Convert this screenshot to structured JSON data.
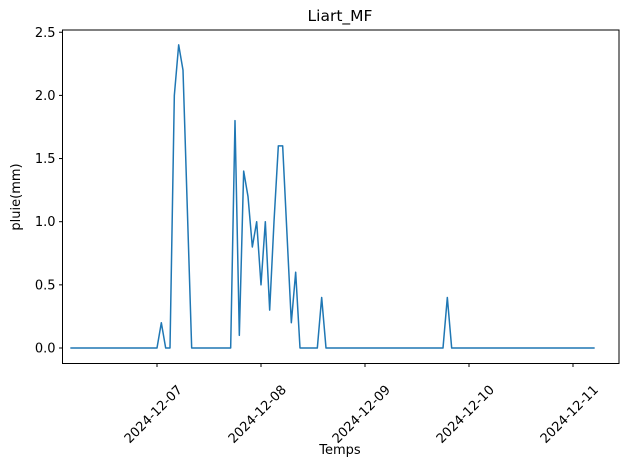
{
  "figure": {
    "title": "Liart_MF",
    "xlabel": "Temps",
    "ylabel": "pluie(mm)"
  },
  "chart_data": {
    "type": "line",
    "title": "Liart_MF",
    "xlabel": "Temps",
    "ylabel": "pluie(mm)",
    "line_color": "#1f77b4",
    "background_color": "#ffffff",
    "grid": false,
    "legend": "none",
    "ylim": [
      -0.13,
      2.52
    ],
    "yticks": {
      "values": [
        0,
        0.5,
        1.0,
        1.5,
        2.0,
        2.5
      ],
      "labels": [
        "0.0",
        "0.5",
        "1.0",
        "1.5",
        "2.0",
        "2.5"
      ]
    },
    "xticks": {
      "labels": [
        "2024-12-07",
        "2024-12-08",
        "2024-12-09",
        "2024-12-10",
        "2024-12-11"
      ],
      "rotation_deg": 45
    },
    "series": [
      {
        "name": "pluie",
        "start": "2024-12-06 04:00",
        "step_hours": 1,
        "values": [
          0,
          0,
          0,
          0,
          0,
          0,
          0,
          0,
          0,
          0,
          0,
          0,
          0,
          0,
          0,
          0,
          0,
          0,
          0,
          0,
          0,
          0.2,
          0,
          0,
          2.0,
          2.4,
          2.2,
          1.1,
          0,
          0,
          0,
          0,
          0,
          0,
          0,
          0,
          0,
          0,
          1.8,
          0.1,
          1.4,
          1.2,
          0.8,
          1.0,
          0.5,
          1.0,
          0.3,
          1.0,
          1.6,
          1.6,
          0.9,
          0.2,
          0.6,
          0,
          0,
          0,
          0,
          0,
          0.4,
          0,
          0,
          0,
          0,
          0,
          0,
          0,
          0,
          0,
          0,
          0,
          0,
          0,
          0,
          0,
          0,
          0,
          0,
          0,
          0,
          0,
          0,
          0,
          0,
          0,
          0,
          0,
          0,
          0.4,
          0,
          0,
          0,
          0,
          0,
          0,
          0,
          0,
          0,
          0,
          0,
          0,
          0,
          0,
          0,
          0,
          0,
          0,
          0,
          0,
          0,
          0,
          0,
          0,
          0,
          0,
          0,
          0,
          0,
          0,
          0,
          0,
          0,
          0
        ]
      }
    ]
  }
}
